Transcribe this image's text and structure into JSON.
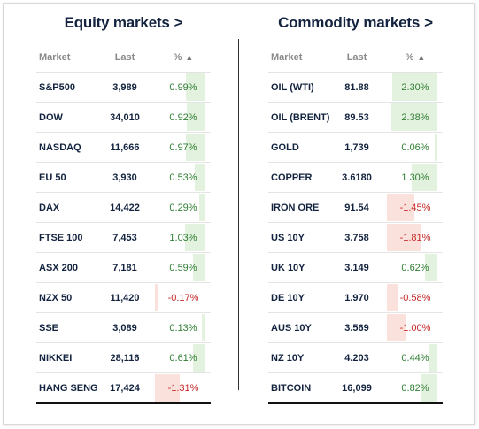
{
  "equity": {
    "title": "Equity markets",
    "title_chevron": ">",
    "headers": {
      "market": "Market",
      "last": "Last",
      "pct": "%",
      "sort_icon": "▲"
    },
    "rows": [
      {
        "market": "S&P500",
        "last": "3,989",
        "pct": "0.99%",
        "change": 0.99
      },
      {
        "market": "DOW",
        "last": "34,010",
        "pct": "0.92%",
        "change": 0.92
      },
      {
        "market": "NASDAQ",
        "last": "11,666",
        "pct": "0.97%",
        "change": 0.97
      },
      {
        "market": "EU 50",
        "last": "3,930",
        "pct": "0.53%",
        "change": 0.53
      },
      {
        "market": "DAX",
        "last": "14,422",
        "pct": "0.29%",
        "change": 0.29
      },
      {
        "market": "FTSE 100",
        "last": "7,453",
        "pct": "1.03%",
        "change": 1.03
      },
      {
        "market": "ASX 200",
        "last": "7,181",
        "pct": "0.59%",
        "change": 0.59
      },
      {
        "market": "NZX 50",
        "last": "11,420",
        "pct": "-0.17%",
        "change": -0.17
      },
      {
        "market": "SSE",
        "last": "3,089",
        "pct": "0.13%",
        "change": 0.13
      },
      {
        "market": "NIKKEI",
        "last": "28,116",
        "pct": "0.61%",
        "change": 0.61
      },
      {
        "market": "HANG SENG",
        "last": "17,424",
        "pct": "-1.31%",
        "change": -1.31
      }
    ]
  },
  "commodity": {
    "title": "Commodity markets",
    "title_chevron": ">",
    "headers": {
      "market": "Market",
      "last": "Last",
      "pct": "%",
      "sort_icon": "▲"
    },
    "rows": [
      {
        "market": "OIL (WTI)",
        "last": "81.88",
        "pct": "2.30%",
        "change": 2.3
      },
      {
        "market": "OIL (BRENT)",
        "last": "89.53",
        "pct": "2.38%",
        "change": 2.38
      },
      {
        "market": "GOLD",
        "last": "1,739",
        "pct": "0.06%",
        "change": 0.06
      },
      {
        "market": "COPPER",
        "last": "3.6180",
        "pct": "1.30%",
        "change": 1.3
      },
      {
        "market": "IRON ORE",
        "last": "91.54",
        "pct": "-1.45%",
        "change": -1.45
      },
      {
        "market": "US 10Y",
        "last": "3.758",
        "pct": "-1.81%",
        "change": -1.81
      },
      {
        "market": "UK 10Y",
        "last": "3.149",
        "pct": "0.62%",
        "change": 0.62
      },
      {
        "market": "DE 10Y",
        "last": "1.970",
        "pct": "-0.58%",
        "change": -0.58
      },
      {
        "market": "AUS 10Y",
        "last": "3.569",
        "pct": "-1.00%",
        "change": -1.0
      },
      {
        "market": "NZ 10Y",
        "last": "4.203",
        "pct": "0.44%",
        "change": 0.44
      },
      {
        "market": "BITCOIN",
        "last": "16,099",
        "pct": "0.82%",
        "change": 0.82
      }
    ]
  },
  "colors": {
    "positive_text": "#2e7d32",
    "negative_text": "#c62828",
    "positive_bar": "#e3f1df",
    "negative_bar": "#fbe1dc",
    "title": "#13233f"
  }
}
